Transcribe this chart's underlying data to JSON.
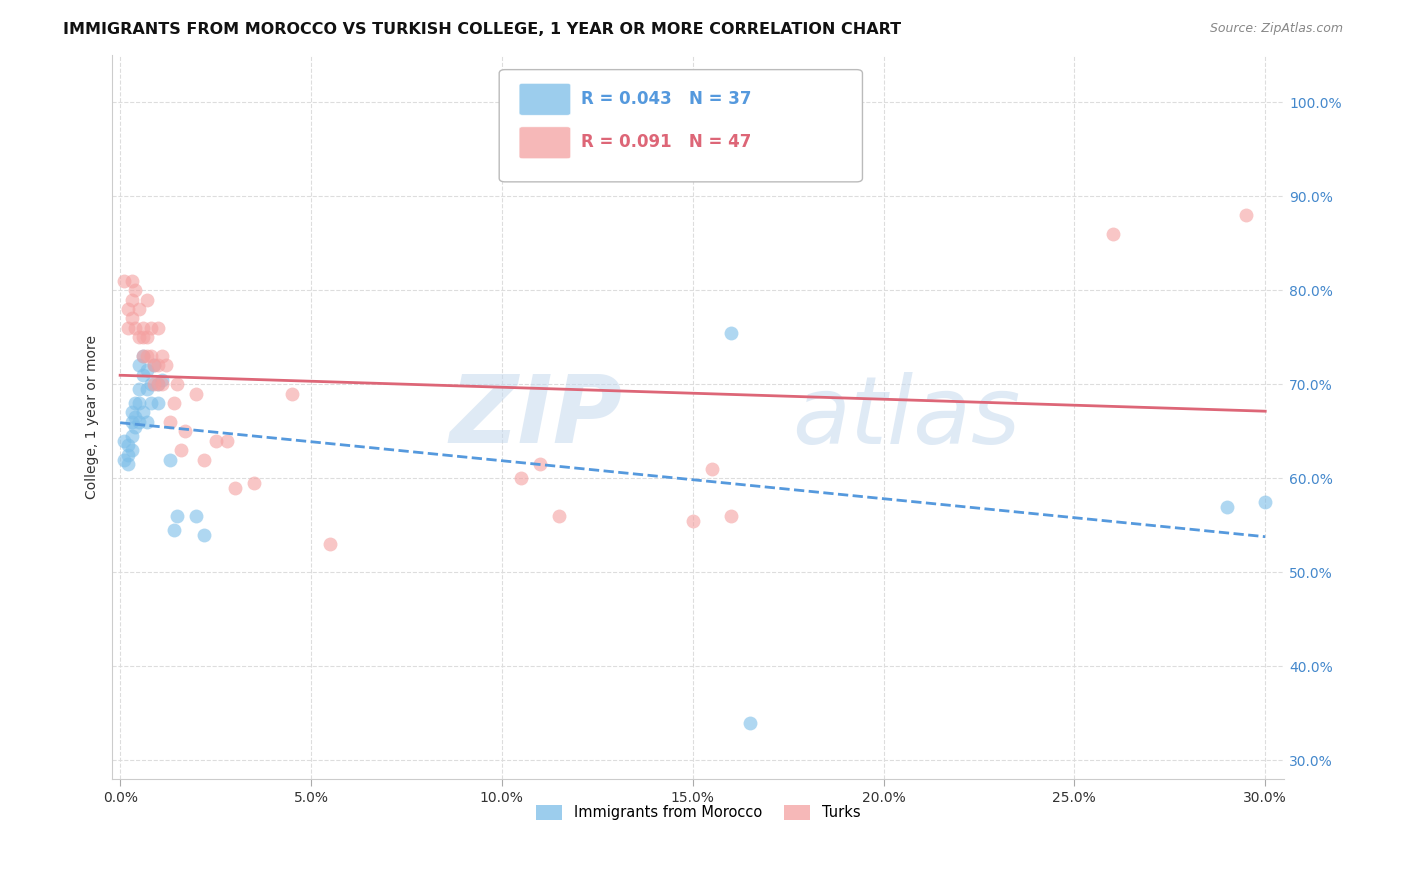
{
  "title": "IMMIGRANTS FROM MOROCCO VS TURKISH COLLEGE, 1 YEAR OR MORE CORRELATION CHART",
  "source": "Source: ZipAtlas.com",
  "ylabel": "College, 1 year or more",
  "legend_entries": [
    {
      "label": "R = 0.043   N = 37",
      "color": "#6baed6"
    },
    {
      "label": "R = 0.091   N = 47",
      "color": "#f4a0a0"
    }
  ],
  "legend_label1": "Immigrants from Morocco",
  "legend_label2": "Turks",
  "watermark_top": "ZIP",
  "watermark_bot": "atlas",
  "xlim": [
    -0.002,
    0.305
  ],
  "ylim": [
    0.28,
    1.05
  ],
  "xtick_vals": [
    0.0,
    0.05,
    0.1,
    0.15,
    0.2,
    0.25,
    0.3
  ],
  "xtick_labels": [
    "0.0%",
    "5.0%",
    "10.0%",
    "15.0%",
    "20.0%",
    "25.0%",
    "30.0%"
  ],
  "ytick_vals": [
    0.3,
    0.4,
    0.5,
    0.6,
    0.7,
    0.8,
    0.9,
    1.0
  ],
  "ytick_labels": [
    "30.0%",
    "40.0%",
    "50.0%",
    "60.0%",
    "70.0%",
    "80.0%",
    "90.0%",
    "100.0%"
  ],
  "morocco_color": "#7bbde8",
  "turks_color": "#f4a0a0",
  "line_morocco_color": "#5599dd",
  "line_turks_color": "#dd6677",
  "grid_color": "#dddddd",
  "background_color": "#ffffff",
  "title_fontsize": 11.5,
  "axis_label_fontsize": 10,
  "tick_fontsize": 10,
  "dot_size": 100,
  "dot_alpha": 0.6,
  "right_tick_color": "#4488cc",
  "morocco_x": [
    0.001,
    0.001,
    0.002,
    0.002,
    0.002,
    0.003,
    0.003,
    0.003,
    0.003,
    0.004,
    0.004,
    0.004,
    0.005,
    0.005,
    0.005,
    0.005,
    0.006,
    0.006,
    0.006,
    0.007,
    0.007,
    0.007,
    0.008,
    0.008,
    0.009,
    0.01,
    0.01,
    0.011,
    0.013,
    0.014,
    0.015,
    0.02,
    0.022,
    0.16,
    0.165,
    0.29,
    0.3
  ],
  "morocco_y": [
    0.62,
    0.64,
    0.625,
    0.635,
    0.615,
    0.66,
    0.645,
    0.63,
    0.67,
    0.68,
    0.655,
    0.665,
    0.695,
    0.66,
    0.68,
    0.72,
    0.67,
    0.71,
    0.73,
    0.695,
    0.715,
    0.66,
    0.7,
    0.68,
    0.72,
    0.7,
    0.68,
    0.705,
    0.62,
    0.545,
    0.56,
    0.56,
    0.54,
    0.755,
    0.34,
    0.57,
    0.575
  ],
  "turks_x": [
    0.001,
    0.002,
    0.002,
    0.003,
    0.003,
    0.003,
    0.004,
    0.004,
    0.005,
    0.005,
    0.006,
    0.006,
    0.006,
    0.007,
    0.007,
    0.007,
    0.008,
    0.008,
    0.009,
    0.009,
    0.01,
    0.01,
    0.01,
    0.011,
    0.011,
    0.012,
    0.013,
    0.014,
    0.015,
    0.016,
    0.017,
    0.02,
    0.022,
    0.025,
    0.028,
    0.03,
    0.035,
    0.045,
    0.055,
    0.105,
    0.11,
    0.115,
    0.15,
    0.155,
    0.16,
    0.26,
    0.295
  ],
  "turks_y": [
    0.81,
    0.78,
    0.76,
    0.79,
    0.81,
    0.77,
    0.76,
    0.8,
    0.78,
    0.75,
    0.76,
    0.73,
    0.75,
    0.79,
    0.75,
    0.73,
    0.73,
    0.76,
    0.7,
    0.72,
    0.7,
    0.72,
    0.76,
    0.7,
    0.73,
    0.72,
    0.66,
    0.68,
    0.7,
    0.63,
    0.65,
    0.69,
    0.62,
    0.64,
    0.64,
    0.59,
    0.595,
    0.69,
    0.53,
    0.6,
    0.615,
    0.56,
    0.555,
    0.61,
    0.56,
    0.86,
    0.88
  ]
}
